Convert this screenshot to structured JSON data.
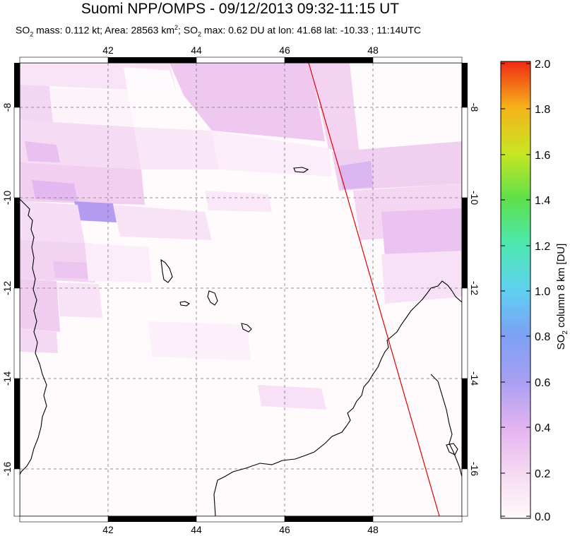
{
  "title": "Suomi NPP/OMPS - 09/12/2013 09:32-11:15 UT",
  "stats": {
    "so2_prefix": "SO",
    "so2_sub": "2",
    "mass": " mass: 0.112 kt; Area: 28563 km",
    "area_sup": "2",
    "max_part": "; SO",
    "max_sub": "2",
    "max_rest": " max: 0.62 DU at lon: 41.68 lat: -10.33 ; 11:14UTC"
  },
  "map": {
    "lon_ticks": [
      "42",
      "44",
      "46",
      "48"
    ],
    "lat_ticks": [
      "-8",
      "-10",
      "-12",
      "-14",
      "-16"
    ],
    "lon_range": [
      40,
      50
    ],
    "lat_range": [
      -17,
      -7
    ]
  },
  "colorbar": {
    "ticks": [
      "2.0",
      "1.8",
      "1.6",
      "1.4",
      "1.2",
      "1.0",
      "0.8",
      "0.6",
      "0.4",
      "0.2",
      "0.0"
    ],
    "label_pre": "SO",
    "label_sub": "2",
    "label_post": " column 8 km [DU]",
    "range": [
      0,
      2.0
    ],
    "colors": [
      "#fffafa",
      "#f5d9f2",
      "#e3b3f0",
      "#c49ff0",
      "#8f8ef2",
      "#63b6f5",
      "#4de8e0",
      "#58e06a",
      "#b8e628",
      "#f2d21c",
      "#f58a19",
      "#f02a14"
    ]
  },
  "overpass_line_color": "#e00000"
}
